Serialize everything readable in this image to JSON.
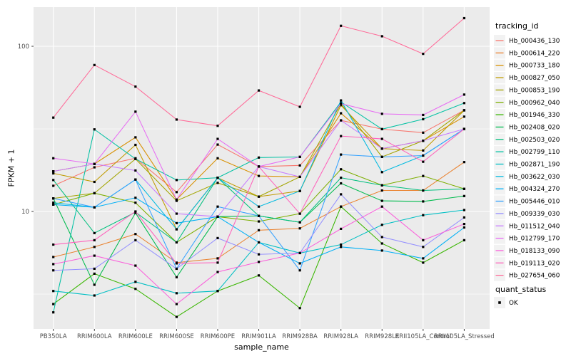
{
  "chart_data": {
    "type": "line",
    "title": "",
    "xlabel": "sample_name",
    "ylabel": "FPKM + 1",
    "y_scale": "log10",
    "ylim": [
      1.95,
      172
    ],
    "y_major_ticks": [
      100,
      10
    ],
    "y_minor_gridlines": [
      31.6,
      3.16
    ],
    "grid": "major-and-minor-white-on-gray-panel",
    "legend_position": "right",
    "point_marker": "black-square",
    "categories": [
      "PB350LA",
      "RRIM600LA",
      "RRIM600LE",
      "RRIM600SE",
      "RRIM600PE",
      "RRIM901LA",
      "RRIM928BA",
      "RRIM928LA",
      "RRIM928LE",
      "RRII105LA_Control",
      "RRII105LA_Stressed"
    ],
    "series": [
      {
        "name": "Hb_000436_130",
        "color": "#F8766D",
        "values": [
          14.3,
          18.5,
          21,
          13.1,
          25.4,
          18.7,
          19,
          35.6,
          31.5,
          30,
          41
        ]
      },
      {
        "name": "Hb_000614_220",
        "color": "#EA8331",
        "values": [
          5.3,
          6.1,
          7.3,
          4.9,
          5.2,
          7.7,
          7.9,
          10.7,
          13.4,
          13.4,
          19.9
        ]
      },
      {
        "name": "Hb_000733_180",
        "color": "#D89000",
        "values": [
          17.5,
          19.4,
          28.1,
          11.8,
          21,
          16.4,
          16.2,
          39.3,
          24,
          26.8,
          37.5
        ]
      },
      {
        "name": "Hb_000827_050",
        "color": "#C09B00",
        "values": [
          17,
          15.1,
          25.3,
          7.8,
          16,
          12.3,
          13.3,
          44,
          24,
          23.4,
          40.9
        ]
      },
      {
        "name": "Hb_000853_190",
        "color": "#A3A500",
        "values": [
          12,
          12.9,
          20.8,
          11.6,
          14.9,
          12.3,
          16.2,
          45,
          21.4,
          26.8,
          41
        ]
      },
      {
        "name": "Hb_000962_040",
        "color": "#7CAE00",
        "values": [
          11,
          12.9,
          11.3,
          6.5,
          9.3,
          8.7,
          9.7,
          18,
          14.4,
          16.4,
          13.7
        ]
      },
      {
        "name": "Hb_001946_330",
        "color": "#39B600",
        "values": [
          2.75,
          4.2,
          3.4,
          2.3,
          3.3,
          4.1,
          2.6,
          10.7,
          6.4,
          4.9,
          6.7
        ]
      },
      {
        "name": "Hb_002408_020",
        "color": "#00BB4E",
        "values": [
          12,
          3.6,
          9.8,
          4,
          9.3,
          9.4,
          8.6,
          14.8,
          11.6,
          11.5,
          12.4
        ]
      },
      {
        "name": "Hb_002503_020",
        "color": "#00BF7D",
        "values": [
          15.5,
          7.4,
          9.9,
          6.5,
          16,
          9.4,
          8.6,
          16,
          14.4,
          13.4,
          13.7
        ]
      },
      {
        "name": "Hb_002799_110",
        "color": "#00C1A3",
        "values": [
          2.45,
          31.4,
          20.8,
          15.5,
          16,
          21.2,
          21.4,
          46,
          31.5,
          36.2,
          45.3
        ]
      },
      {
        "name": "Hb_002871_190",
        "color": "#00BFC4",
        "values": [
          3.3,
          3.1,
          3.75,
          3.2,
          3.3,
          6.5,
          5.6,
          6.3,
          8.3,
          9.5,
          10.2
        ]
      },
      {
        "name": "Hb_003622_030",
        "color": "#00BAE0",
        "values": [
          11.3,
          10.6,
          15.6,
          7.8,
          16,
          10.7,
          13.3,
          47,
          17.3,
          21.8,
          31.6
        ]
      },
      {
        "name": "Hb_004324_270",
        "color": "#00B0F6",
        "values": [
          11,
          10.6,
          12.1,
          8.5,
          9.3,
          6.5,
          4.85,
          6.1,
          5.8,
          5.2,
          8
        ]
      },
      {
        "name": "Hb_005446_010",
        "color": "#35A2FF",
        "values": [
          12,
          10.6,
          15.6,
          4.5,
          10.7,
          9.4,
          4.4,
          22.1,
          21.4,
          21.8,
          31.6
        ]
      },
      {
        "name": "Hb_009339_030",
        "color": "#9590FF",
        "values": [
          4.4,
          4.5,
          6.7,
          4.5,
          6.9,
          5.5,
          5.6,
          12.7,
          7,
          6.1,
          9.2
        ]
      },
      {
        "name": "Hb_011512_040",
        "color": "#C77CFF",
        "values": [
          17.5,
          19.4,
          17.7,
          9.7,
          9.3,
          18.7,
          16.2,
          35.6,
          24,
          26.8,
          31.6
        ]
      },
      {
        "name": "Hb_012799_170",
        "color": "#E76BF3",
        "values": [
          21,
          19.4,
          40.2,
          11.8,
          27.5,
          18.7,
          21.4,
          45,
          39,
          38.4,
          51
        ]
      },
      {
        "name": "Hb_018133_090",
        "color": "#FA62DB",
        "values": [
          4.8,
          5.4,
          4.7,
          2.75,
          4.3,
          4.95,
          5.6,
          7.85,
          10.7,
          6.7,
          8.4
        ]
      },
      {
        "name": "Hb_019113_020",
        "color": "#FF62BC",
        "values": [
          6.3,
          6.7,
          10,
          4.85,
          4.9,
          18.7,
          9.7,
          28.6,
          27.5,
          20,
          31.6
        ]
      },
      {
        "name": "Hb_027654_060",
        "color": "#FF6A98",
        "values": [
          37,
          77,
          57,
          36,
          33,
          54,
          43,
          133,
          115,
          90,
          148
        ]
      }
    ]
  },
  "legend": {
    "tracking_title": "tracking_id",
    "quant_title": "quant_status",
    "quant_items": [
      {
        "label": "OK",
        "marker": "black-square"
      }
    ]
  },
  "colors": {
    "panel_bg": "#EBEBEB",
    "grid": "#FFFFFF",
    "tick_text": "#4D4D4D",
    "tick_mark": "#333333",
    "legend_key_bg": "#F2F2F2",
    "marker": "#000000"
  }
}
